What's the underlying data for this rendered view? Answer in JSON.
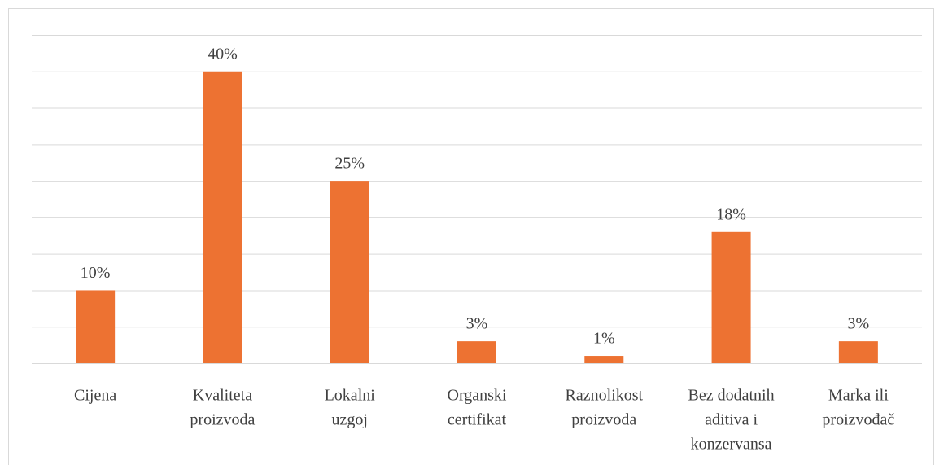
{
  "chart_data": {
    "type": "bar",
    "categories": [
      [
        "Cijena"
      ],
      [
        "Kvaliteta",
        "proizvoda"
      ],
      [
        "Lokalni",
        "uzgoj"
      ],
      [
        "Organski",
        "certifikat"
      ],
      [
        "Raznolikost",
        "proizvoda"
      ],
      [
        "Bez dodatnih",
        "aditiva i",
        "konzervansa"
      ],
      [
        "Marka ili",
        "proizvođač"
      ]
    ],
    "values": [
      10,
      40,
      25,
      3,
      1,
      18,
      3
    ],
    "value_labels": [
      "10%",
      "40%",
      "25%",
      "3%",
      "1%",
      "18%",
      "3%"
    ],
    "color": "#ed7232",
    "ylim": [
      0,
      45
    ],
    "yticks": [
      0,
      5,
      10,
      15,
      20,
      25,
      30,
      35,
      40,
      45
    ],
    "show_tick_labels": false,
    "grid": true
  }
}
